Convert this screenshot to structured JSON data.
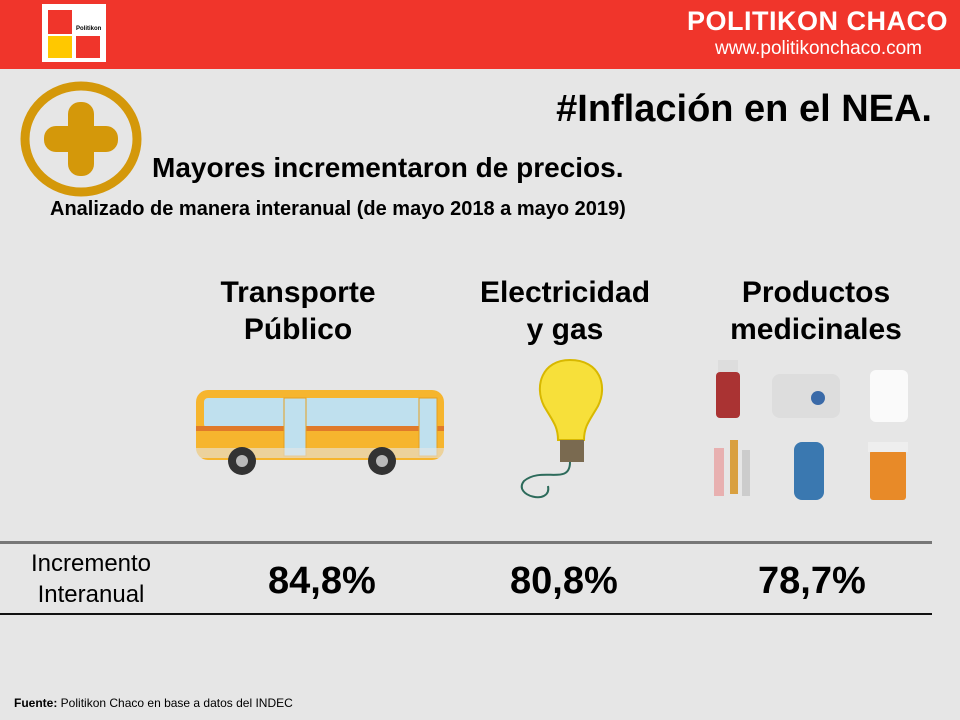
{
  "header": {
    "brand": "POLITIKON CHACO",
    "url": "www.politikonchaco.com",
    "logo_text": "Politikon"
  },
  "title": "#Inflación en el NEA.",
  "subtitle": "Mayores incrementaron  de precios.",
  "note": "Analizado de manera interanual (de mayo 2018 a mayo 2019)",
  "categories": [
    {
      "line1": "Transporte",
      "line2": "Público",
      "icon": "bus-icon",
      "value": "84,8%"
    },
    {
      "line1": "Electricidad",
      "line2": "y gas",
      "icon": "light-bulb-icon",
      "value": "80,8%"
    },
    {
      "line1": "Productos",
      "line2": "medicinales",
      "icon": "medicine-icon",
      "value": "78,7%"
    }
  ],
  "row_label": {
    "line1": "Incremento",
    "line2": "Interanual"
  },
  "source": {
    "label": "Fuente:",
    "text": " Politikon Chaco en base a datos del INDEC"
  },
  "colors": {
    "header": "#f0352b",
    "accent": "#d4980a"
  }
}
